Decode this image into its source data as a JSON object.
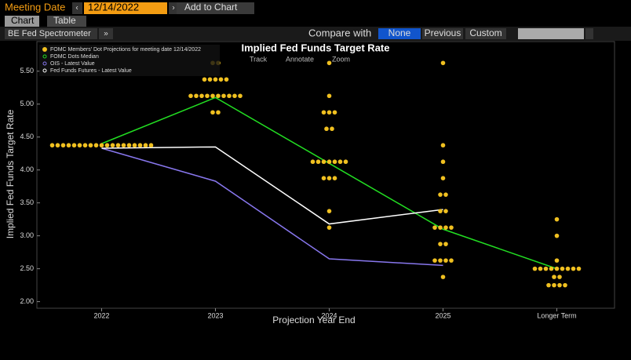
{
  "ui": {
    "meeting_label": "Meeting Date",
    "meeting_date": "12/14/2022",
    "add_button": "Add to Chart",
    "tabs": [
      "Chart",
      "Table"
    ],
    "source": "BE Fed Spectrometer",
    "compare_label": "Compare with",
    "compare_options": [
      "None",
      "Previous",
      "Custom"
    ],
    "tools": [
      "Track",
      "Annotate",
      "Zoom"
    ]
  },
  "chart_data": {
    "type": "line",
    "title": "Implied Fed Funds Target Rate",
    "x_label": "Projection Year End",
    "y_label": "Implied Fed Funds Target Rate",
    "categories": [
      "2022",
      "2023",
      "2024",
      "2025",
      "Longer Term"
    ],
    "ylim": [
      1.9,
      5.95
    ],
    "yticks": [
      {
        "value": 2,
        "label": "2.00"
      },
      {
        "value": 2.5,
        "label": "2.50"
      },
      {
        "value": 3,
        "label": "3.00"
      },
      {
        "value": 3.5,
        "label": "3.50"
      },
      {
        "value": 4,
        "label": "4.00"
      },
      {
        "value": 4.5,
        "label": "4.50"
      },
      {
        "value": 5,
        "label": "5.00"
      },
      {
        "value": 5.5,
        "label": "5.50"
      }
    ],
    "dots": {
      "name": "FOMC Members' Dot Projections for meeting date 12/14/2022",
      "color": "#f0c020",
      "values": [
        [
          4.375,
          4.375,
          4.375,
          4.375,
          4.375,
          4.375,
          4.375,
          4.375,
          4.375,
          4.375,
          4.375,
          4.375,
          4.375,
          4.375,
          4.375,
          4.375,
          4.375,
          4.375,
          4.375
        ],
        [
          5.625,
          5.625,
          5.375,
          5.375,
          5.375,
          5.375,
          5.375,
          5.125,
          5.125,
          5.125,
          5.125,
          5.125,
          5.125,
          5.125,
          5.125,
          5.125,
          5.125,
          4.875,
          4.875
        ],
        [
          5.625,
          5.125,
          4.875,
          4.875,
          4.875,
          4.625,
          4.625,
          4.125,
          4.125,
          4.125,
          4.125,
          4.125,
          4.125,
          4.125,
          3.875,
          3.875,
          3.875,
          3.375,
          3.125
        ],
        [
          5.625,
          4.375,
          4.125,
          3.875,
          3.625,
          3.625,
          3.375,
          3.375,
          3.125,
          3.125,
          3.125,
          3.125,
          2.875,
          2.875,
          2.625,
          2.625,
          2.625,
          2.625,
          2.375
        ],
        [
          3.25,
          3.0,
          2.625,
          2.5,
          2.5,
          2.5,
          2.5,
          2.5,
          2.5,
          2.5,
          2.5,
          2.5,
          2.375,
          2.375,
          2.25,
          2.25,
          2.25,
          2.25
        ]
      ]
    },
    "series": [
      {
        "name": "FOMC Dots Median",
        "color": "#22dd22",
        "values": [
          4.4,
          5.1,
          4.1,
          3.1,
          2.5
        ]
      },
      {
        "name": "OIS - Latest Value",
        "color": "#8877ee",
        "values": [
          4.33,
          3.83,
          2.65,
          2.55,
          null
        ]
      },
      {
        "name": "Fed Funds Futures - Latest Value",
        "color": "#ffffff",
        "values": [
          4.33,
          4.35,
          3.18,
          3.4,
          null
        ]
      }
    ]
  }
}
